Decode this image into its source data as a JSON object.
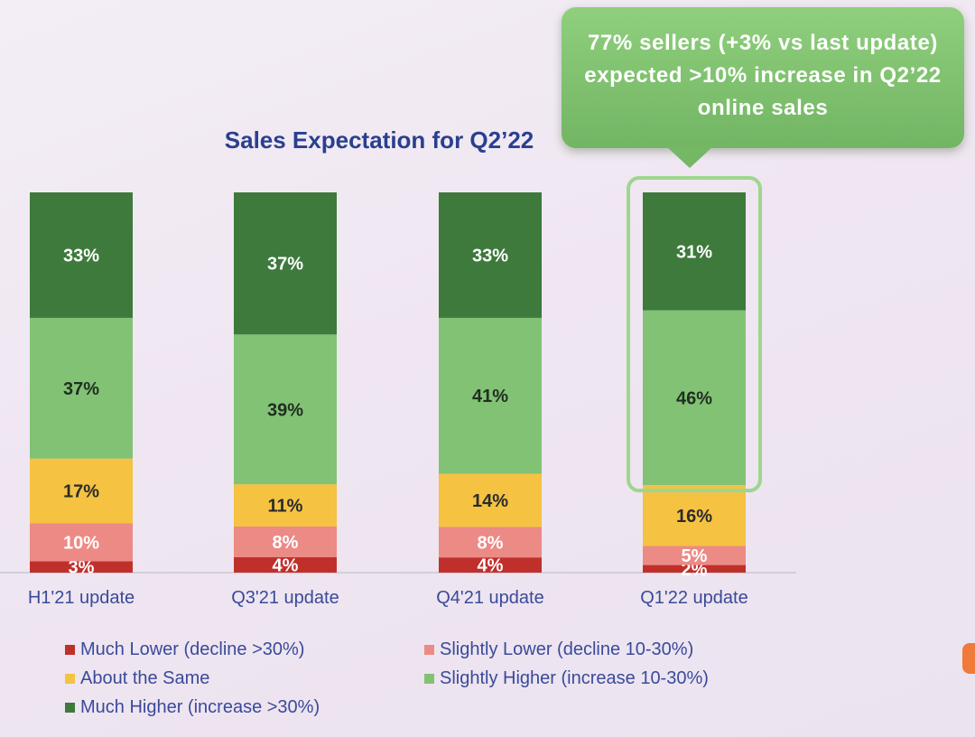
{
  "callout": {
    "text": "77% sellers (+3% vs last update) expected >10% increase in Q2’22 online sales"
  },
  "colors": {
    "much_lower": "#c0302b",
    "slightly_lower": "#ec8a86",
    "about_same": "#f5c242",
    "slightly_higher": "#82c275",
    "much_higher": "#3d7a3c",
    "highlight_border": "#9fd68e",
    "title": "#2a3f8f",
    "axis_label": "#3a4a9a"
  },
  "chart_data": {
    "type": "bar",
    "stacked": true,
    "title": "Sales Expectation for Q2’22",
    "categories": [
      "H1'21 update",
      "Q3'21 update",
      "Q4'21 update",
      "Q1'22 update"
    ],
    "series": [
      {
        "name": "Much Lower (decline >30%)",
        "key": "much_lower",
        "values": [
          3,
          4,
          4,
          2
        ],
        "labels": [
          "3%",
          "4%",
          "4%",
          "2%"
        ]
      },
      {
        "name": "Slightly Lower (decline 10-30%)",
        "key": "slightly_lower",
        "values": [
          10,
          8,
          8,
          5
        ],
        "labels": [
          "10%",
          "8%",
          "8%",
          "5%"
        ]
      },
      {
        "name": "About the Same",
        "key": "about_same",
        "values": [
          17,
          11,
          14,
          16
        ],
        "labels": [
          "17%",
          "11%",
          "14%",
          "16%"
        ]
      },
      {
        "name": "Slightly Higher (increase 10-30%)",
        "key": "slightly_higher",
        "values": [
          37,
          39,
          41,
          46
        ],
        "labels": [
          "37%",
          "39%",
          "41%",
          "46%"
        ]
      },
      {
        "name": "Much Higher (increase >30%)",
        "key": "much_higher",
        "values": [
          33,
          37,
          33,
          31
        ],
        "labels": [
          "33%",
          "37%",
          "33%",
          "31%"
        ]
      }
    ],
    "ylim": [
      0,
      100
    ],
    "highlighted_category": "Q1'22 update",
    "grid": false,
    "legend_position": "bottom"
  }
}
